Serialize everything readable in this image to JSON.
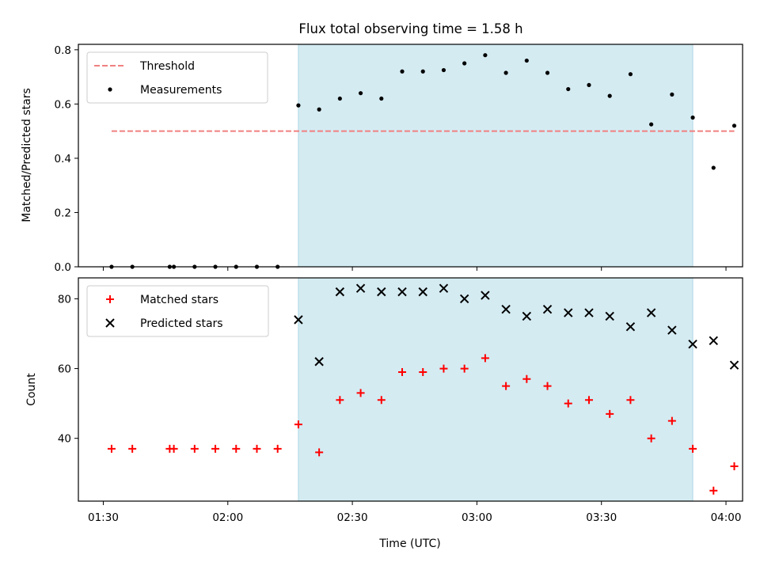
{
  "chart_data": [
    {
      "type": "scatter",
      "title": "Flux total observing time = 1.58 h",
      "xlabel": "",
      "ylabel": "Matched/Predicted stars",
      "ylim": [
        0,
        0.82
      ],
      "yticks": [
        0.0,
        0.2,
        0.4,
        0.6,
        0.8
      ],
      "ytick_labels": [
        "0.0",
        "0.2",
        "0.4",
        "0.6",
        "0.8"
      ],
      "xlim": [
        "01:24",
        "04:04"
      ],
      "xticks": [
        "01:30",
        "02:00",
        "02:30",
        "03:00",
        "03:30",
        "04:00"
      ],
      "shaded_span": {
        "start": "02:17",
        "end": "03:52",
        "color": "#add8e6"
      },
      "legend_position": "upper left",
      "series": [
        {
          "name": "Threshold",
          "style": "dashed-line",
          "color": "#f08080",
          "x": [
            "01:32",
            "04:02"
          ],
          "values": [
            0.5,
            0.5
          ]
        },
        {
          "name": "Measurements",
          "style": "dot",
          "color": "#000000",
          "x": [
            "01:32",
            "01:37",
            "01:46",
            "01:47",
            "01:52",
            "01:57",
            "02:02",
            "02:07",
            "02:12",
            "02:17",
            "02:22",
            "02:27",
            "02:32",
            "02:37",
            "02:42",
            "02:47",
            "02:52",
            "02:57",
            "03:02",
            "03:07",
            "03:12",
            "03:17",
            "03:22",
            "03:27",
            "03:32",
            "03:37",
            "03:42",
            "03:47",
            "03:52",
            "03:57",
            "04:02"
          ],
          "values": [
            0,
            0,
            0,
            0,
            0,
            0,
            0,
            0,
            0,
            0.595,
            0.58,
            0.62,
            0.64,
            0.62,
            0.72,
            0.72,
            0.725,
            0.75,
            0.78,
            0.715,
            0.76,
            0.715,
            0.655,
            0.67,
            0.63,
            0.71,
            0.525,
            0.635,
            0.55,
            0.365,
            0.52
          ]
        }
      ]
    },
    {
      "type": "scatter",
      "title": "",
      "xlabel": "Time (UTC)",
      "ylabel": "Count",
      "ylim": [
        22,
        86
      ],
      "yticks": [
        40,
        60,
        80
      ],
      "ytick_labels": [
        "40",
        "60",
        "80"
      ],
      "xlim": [
        "01:24",
        "04:04"
      ],
      "xticks": [
        "01:30",
        "02:00",
        "02:30",
        "03:00",
        "03:30",
        "04:00"
      ],
      "xtick_labels": [
        "01:30",
        "02:00",
        "02:30",
        "03:00",
        "03:30",
        "04:00"
      ],
      "shaded_span": {
        "start": "02:17",
        "end": "03:52",
        "color": "#add8e6"
      },
      "legend_position": "upper left",
      "series": [
        {
          "name": "Matched stars",
          "style": "plus",
          "color": "#ff0000",
          "x": [
            "01:32",
            "01:37",
            "01:46",
            "01:47",
            "01:52",
            "01:57",
            "02:02",
            "02:07",
            "02:12",
            "02:17",
            "02:22",
            "02:27",
            "02:32",
            "02:37",
            "02:42",
            "02:47",
            "02:52",
            "02:57",
            "03:02",
            "03:07",
            "03:12",
            "03:17",
            "03:22",
            "03:27",
            "03:32",
            "03:37",
            "03:42",
            "03:47",
            "03:52",
            "03:57",
            "04:02"
          ],
          "values": [
            37,
            37,
            37,
            37,
            37,
            37,
            37,
            37,
            37,
            44,
            36,
            51,
            53,
            51,
            59,
            59,
            60,
            60,
            63,
            55,
            57,
            55,
            50,
            51,
            47,
            51,
            40,
            45,
            37,
            25,
            32
          ]
        },
        {
          "name": "Predicted stars",
          "style": "x",
          "color": "#000000",
          "x": [
            "02:17",
            "02:22",
            "02:27",
            "02:32",
            "02:37",
            "02:42",
            "02:47",
            "02:52",
            "02:57",
            "03:02",
            "03:07",
            "03:12",
            "03:17",
            "03:22",
            "03:27",
            "03:32",
            "03:37",
            "03:42",
            "03:47",
            "03:52",
            "03:57",
            "04:02"
          ],
          "values": [
            74,
            62,
            82,
            83,
            82,
            82,
            82,
            83,
            80,
            81,
            77,
            75,
            77,
            76,
            76,
            75,
            72,
            76,
            71,
            67,
            68,
            61
          ]
        }
      ]
    }
  ]
}
